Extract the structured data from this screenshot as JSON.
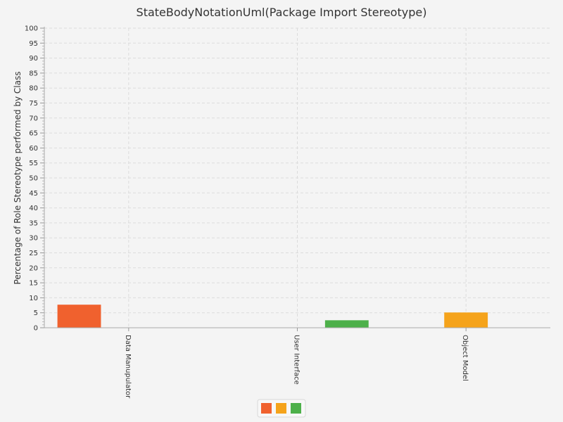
{
  "chart_data": {
    "type": "bar",
    "title": "StateBodyNotationUml(Package Import Stereotype)",
    "xlabel": "",
    "ylabel": "Percentage of Role Stereotype performed by Class",
    "ylim": [
      0,
      100
    ],
    "ytick_step": 5,
    "grid": true,
    "legend_position": "bottom",
    "categories": [
      "Data Manupulator",
      "User Interface",
      "Object Model"
    ],
    "series": [
      {
        "values": [
          7.7,
          0,
          0
        ],
        "color": "#f0612e"
      },
      {
        "values": [
          0,
          0,
          5.1
        ],
        "color": "#f5a31b"
      },
      {
        "values": [
          0,
          2.5,
          0
        ],
        "color": "#4db04a"
      }
    ]
  }
}
